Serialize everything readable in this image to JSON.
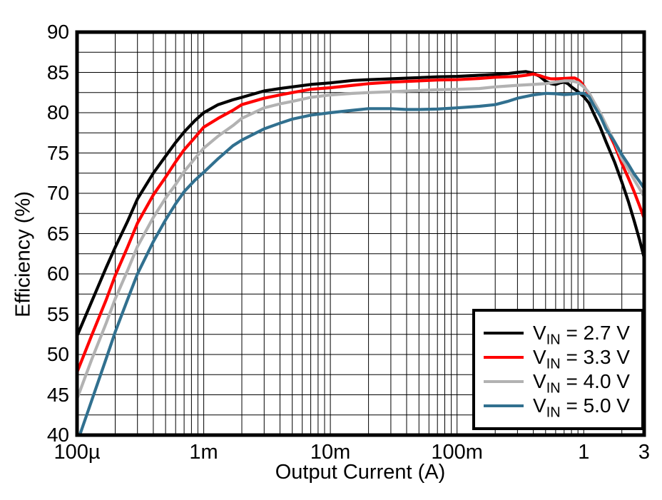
{
  "figure": {
    "background": "#ffffff",
    "grid_color": "#000000",
    "frame_color": "#000000"
  },
  "chart_data": {
    "type": "line",
    "title": "",
    "xlabel": "Output Current (A)",
    "ylabel": "Efficiency (%)",
    "x_scale": "log",
    "xlim": [
      0.0001,
      3
    ],
    "ylim": [
      40,
      90
    ],
    "y_major_step": 5,
    "y_minor_step": 2.5,
    "grid": "on",
    "legend_position": "bottom-right",
    "x_ticks": [
      {
        "value": 0.0001,
        "label": "100µ"
      },
      {
        "value": 0.001,
        "label": "1m"
      },
      {
        "value": 0.01,
        "label": "10m"
      },
      {
        "value": 0.1,
        "label": "100m"
      },
      {
        "value": 1,
        "label": "1"
      },
      {
        "value": 3,
        "label": "3"
      }
    ],
    "y_ticks": [
      90,
      85,
      80,
      75,
      70,
      65,
      60,
      55,
      50,
      45,
      40
    ],
    "series": [
      {
        "name": "VIN = 2.7 V",
        "label_prefix": "V",
        "label_sub": "IN",
        "label_rest": " = 2.7 V",
        "color": "#000000",
        "points": [
          [
            0.0001,
            52.3
          ],
          [
            0.00013,
            56.5
          ],
          [
            0.00017,
            60.8
          ],
          [
            0.0002,
            63.3
          ],
          [
            0.00025,
            66.5
          ],
          [
            0.0003,
            69.3
          ],
          [
            0.0004,
            72.5
          ],
          [
            0.0005,
            74.6
          ],
          [
            0.0006,
            76.3
          ],
          [
            0.0007,
            77.6
          ],
          [
            0.00085,
            79.0
          ],
          [
            0.001,
            80.0
          ],
          [
            0.0013,
            81.0
          ],
          [
            0.0017,
            81.6
          ],
          [
            0.002,
            81.9
          ],
          [
            0.003,
            82.7
          ],
          [
            0.004,
            83.0
          ],
          [
            0.005,
            83.2
          ],
          [
            0.007,
            83.5
          ],
          [
            0.01,
            83.7
          ],
          [
            0.015,
            84.0
          ],
          [
            0.02,
            84.1
          ],
          [
            0.03,
            84.2
          ],
          [
            0.05,
            84.35
          ],
          [
            0.07,
            84.45
          ],
          [
            0.1,
            84.5
          ],
          [
            0.15,
            84.65
          ],
          [
            0.2,
            84.75
          ],
          [
            0.25,
            84.85
          ],
          [
            0.3,
            85.0
          ],
          [
            0.35,
            85.1
          ],
          [
            0.4,
            84.9
          ],
          [
            0.45,
            84.5
          ],
          [
            0.5,
            83.9
          ],
          [
            0.55,
            83.6
          ],
          [
            0.6,
            83.5
          ],
          [
            0.65,
            83.7
          ],
          [
            0.7,
            83.8
          ],
          [
            0.75,
            83.6
          ],
          [
            0.8,
            83.2
          ],
          [
            0.9,
            82.6
          ],
          [
            1.0,
            82.0
          ],
          [
            1.1,
            81.2
          ],
          [
            1.2,
            79.9
          ],
          [
            1.35,
            78.2
          ],
          [
            1.5,
            76.4
          ],
          [
            1.75,
            73.9
          ],
          [
            2.0,
            71.4
          ],
          [
            2.25,
            69.0
          ],
          [
            2.5,
            66.6
          ],
          [
            2.75,
            64.3
          ],
          [
            3.0,
            62.0
          ]
        ]
      },
      {
        "name": "VIN = 3.3 V",
        "label_prefix": "V",
        "label_sub": "IN",
        "label_rest": " = 3.3 V",
        "color": "#ff0000",
        "points": [
          [
            0.0001,
            47.8
          ],
          [
            0.00013,
            52.3
          ],
          [
            0.00017,
            56.8
          ],
          [
            0.0002,
            59.8
          ],
          [
            0.00025,
            63.3
          ],
          [
            0.0003,
            66.3
          ],
          [
            0.0004,
            69.8
          ],
          [
            0.0005,
            72.0
          ],
          [
            0.0006,
            73.9
          ],
          [
            0.0007,
            75.4
          ],
          [
            0.00085,
            76.9
          ],
          [
            0.001,
            78.2
          ],
          [
            0.0013,
            79.3
          ],
          [
            0.0017,
            80.3
          ],
          [
            0.002,
            81.0
          ],
          [
            0.003,
            81.8
          ],
          [
            0.004,
            82.2
          ],
          [
            0.005,
            82.5
          ],
          [
            0.007,
            82.9
          ],
          [
            0.01,
            83.1
          ],
          [
            0.015,
            83.4
          ],
          [
            0.02,
            83.6
          ],
          [
            0.03,
            83.8
          ],
          [
            0.05,
            83.95
          ],
          [
            0.07,
            84.05
          ],
          [
            0.1,
            84.1
          ],
          [
            0.15,
            84.25
          ],
          [
            0.2,
            84.4
          ],
          [
            0.3,
            84.5
          ],
          [
            0.35,
            84.65
          ],
          [
            0.4,
            84.8
          ],
          [
            0.45,
            84.6
          ],
          [
            0.5,
            84.35
          ],
          [
            0.55,
            84.2
          ],
          [
            0.6,
            84.2
          ],
          [
            0.7,
            84.25
          ],
          [
            0.8,
            84.3
          ],
          [
            0.85,
            84.3
          ],
          [
            0.9,
            84.1
          ],
          [
            0.95,
            83.8
          ],
          [
            1.0,
            83.3
          ],
          [
            1.1,
            82.3
          ],
          [
            1.2,
            81.0
          ],
          [
            1.35,
            79.6
          ],
          [
            1.5,
            78.2
          ],
          [
            1.75,
            76.0
          ],
          [
            2.0,
            73.7
          ],
          [
            2.25,
            71.9
          ],
          [
            2.5,
            70.2
          ],
          [
            2.75,
            68.5
          ],
          [
            3.0,
            66.9
          ]
        ]
      },
      {
        "name": "VIN = 4.0 V",
        "label_prefix": "V",
        "label_sub": "IN",
        "label_rest": " = 4.0 V",
        "color": "#b2b2b2",
        "points": [
          [
            0.0001,
            44.5
          ],
          [
            0.00013,
            49.3
          ],
          [
            0.00017,
            53.9
          ],
          [
            0.0002,
            56.9
          ],
          [
            0.00025,
            60.4
          ],
          [
            0.0003,
            63.4
          ],
          [
            0.0004,
            67.0
          ],
          [
            0.0005,
            69.4
          ],
          [
            0.0006,
            71.1
          ],
          [
            0.0007,
            72.7
          ],
          [
            0.00085,
            74.3
          ],
          [
            0.001,
            75.6
          ],
          [
            0.0013,
            77.1
          ],
          [
            0.0017,
            78.4
          ],
          [
            0.002,
            79.3
          ],
          [
            0.003,
            80.6
          ],
          [
            0.004,
            81.1
          ],
          [
            0.005,
            81.4
          ],
          [
            0.007,
            81.9
          ],
          [
            0.01,
            82.2
          ],
          [
            0.015,
            82.4
          ],
          [
            0.02,
            82.5
          ],
          [
            0.03,
            82.6
          ],
          [
            0.05,
            82.75
          ],
          [
            0.07,
            82.85
          ],
          [
            0.1,
            82.9
          ],
          [
            0.15,
            83.0
          ],
          [
            0.2,
            83.2
          ],
          [
            0.3,
            83.4
          ],
          [
            0.4,
            83.5
          ],
          [
            0.5,
            83.6
          ],
          [
            0.6,
            83.8
          ],
          [
            0.7,
            83.95
          ],
          [
            0.8,
            83.95
          ],
          [
            0.9,
            83.75
          ],
          [
            1.0,
            83.2
          ],
          [
            1.1,
            82.5
          ],
          [
            1.2,
            81.4
          ],
          [
            1.35,
            80.0
          ],
          [
            1.5,
            78.5
          ],
          [
            1.75,
            76.4
          ],
          [
            2.0,
            74.3
          ],
          [
            2.25,
            73.0
          ],
          [
            2.5,
            71.7
          ],
          [
            2.75,
            70.6
          ],
          [
            3.0,
            69.6
          ]
        ]
      },
      {
        "name": "VIN = 5.0 V",
        "label_prefix": "V",
        "label_sub": "IN",
        "label_rest": " = 5.0 V",
        "color": "#31708f",
        "points": [
          [
            0.000105,
            40.0
          ],
          [
            0.00013,
            44.2
          ],
          [
            0.00017,
            49.5
          ],
          [
            0.0002,
            52.8
          ],
          [
            0.00025,
            56.8
          ],
          [
            0.0003,
            60.0
          ],
          [
            0.0004,
            64.0
          ],
          [
            0.0005,
            66.7
          ],
          [
            0.0006,
            68.7
          ],
          [
            0.0007,
            70.2
          ],
          [
            0.00085,
            71.6
          ],
          [
            0.001,
            72.6
          ],
          [
            0.0013,
            74.3
          ],
          [
            0.0017,
            75.9
          ],
          [
            0.002,
            76.6
          ],
          [
            0.003,
            78.0
          ],
          [
            0.004,
            78.7
          ],
          [
            0.005,
            79.2
          ],
          [
            0.007,
            79.7
          ],
          [
            0.01,
            80.0
          ],
          [
            0.015,
            80.3
          ],
          [
            0.02,
            80.5
          ],
          [
            0.03,
            80.5
          ],
          [
            0.04,
            80.4
          ],
          [
            0.05,
            80.4
          ],
          [
            0.07,
            80.45
          ],
          [
            0.1,
            80.6
          ],
          [
            0.15,
            80.8
          ],
          [
            0.2,
            81.0
          ],
          [
            0.25,
            81.4
          ],
          [
            0.3,
            81.8
          ],
          [
            0.4,
            82.2
          ],
          [
            0.5,
            82.4
          ],
          [
            0.6,
            82.35
          ],
          [
            0.7,
            82.25
          ],
          [
            0.8,
            82.3
          ],
          [
            0.9,
            82.4
          ],
          [
            1.0,
            82.4
          ],
          [
            1.1,
            82.0
          ],
          [
            1.2,
            80.9
          ],
          [
            1.35,
            79.6
          ],
          [
            1.5,
            78.0
          ],
          [
            1.75,
            76.4
          ],
          [
            2.0,
            74.8
          ],
          [
            2.25,
            73.6
          ],
          [
            2.5,
            72.4
          ],
          [
            2.75,
            71.5
          ],
          [
            3.0,
            70.6
          ]
        ]
      }
    ]
  }
}
